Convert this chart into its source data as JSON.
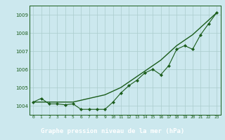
{
  "xlabel": "Graphe pression niveau de la mer (hPa)",
  "x": [
    0,
    1,
    2,
    3,
    4,
    5,
    6,
    7,
    8,
    9,
    10,
    11,
    12,
    13,
    14,
    15,
    16,
    17,
    18,
    19,
    20,
    21,
    22,
    23
  ],
  "series2": [
    1004.2,
    1004.4,
    1004.1,
    1004.1,
    1004.05,
    1004.1,
    1003.8,
    1003.8,
    1003.8,
    1003.8,
    1004.2,
    1004.7,
    1005.1,
    1005.4,
    1005.8,
    1006.0,
    1005.7,
    1006.2,
    1007.1,
    1007.3,
    1007.1,
    1007.9,
    1008.5,
    1009.1
  ],
  "series3": [
    1004.2,
    1004.2,
    1004.2,
    1004.2,
    1004.2,
    1004.2,
    1004.3,
    1004.4,
    1004.5,
    1004.6,
    1004.8,
    1005.0,
    1005.3,
    1005.6,
    1005.9,
    1006.2,
    1006.5,
    1006.9,
    1007.3,
    1007.6,
    1007.9,
    1008.3,
    1008.7,
    1009.1
  ],
  "ylim": [
    1003.5,
    1009.5
  ],
  "yticks": [
    1004,
    1005,
    1006,
    1007,
    1008,
    1009
  ],
  "bg_color": "#cce8ee",
  "line_color": "#1a5c1a",
  "grid_color": "#aacccc",
  "xlabel_bg": "#3a8a3a",
  "xlabel_text": "#ffffff"
}
